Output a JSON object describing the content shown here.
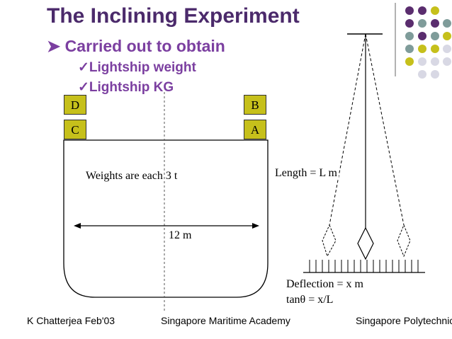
{
  "title": "The Inclining Experiment",
  "bullet": "Carried out to obtain",
  "sub_bullets": [
    "Lightship weight",
    "Lightship KG"
  ],
  "weights": {
    "d": "D",
    "c": "C",
    "b": "B",
    "a": "A"
  },
  "labels": {
    "weights": "Weights are each 3 t",
    "span": "12 m",
    "length": "Length = L m",
    "deflection": "Deflection = x m",
    "tan_formula": "tanθ = x/L"
  },
  "footer": {
    "left": "K Chatterjea Feb'03",
    "center": "Singapore Maritime Academy",
    "right": "Singapore Polytechnic"
  },
  "colors": {
    "title": "#4b2a6b",
    "bullet": "#7b3fa0",
    "weight_fill": "#c6c01b",
    "dot_purple": "#5a2d6e",
    "dot_teal": "#7f9c9a",
    "dot_olive": "#c6c01b",
    "dot_gray": "#d8d8e4"
  },
  "icons": {
    "bullet_arrow": "arrow-bullet-icon",
    "check": "check-icon"
  }
}
